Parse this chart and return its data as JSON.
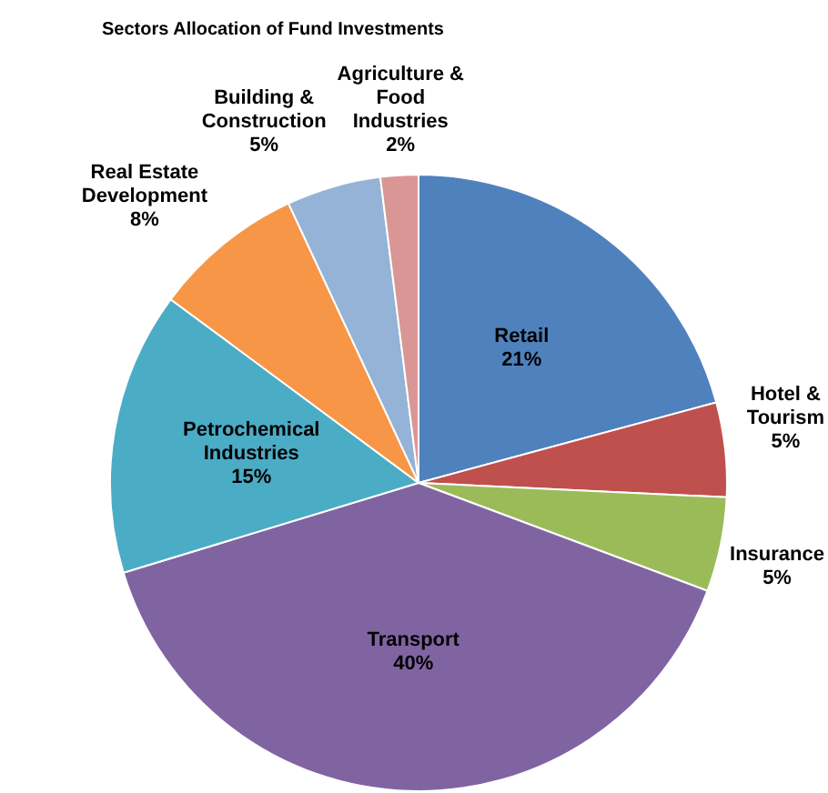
{
  "chart_data": {
    "type": "pie",
    "title": "Sectors Allocation of Fund Investments",
    "categories": [
      "Retail",
      "Hotel & Tourism",
      "Insurance",
      "Transport",
      "Petrochemical Industries",
      "Real Estate Development",
      "Building & Construction",
      "Agriculture & Food Industries"
    ],
    "values": [
      21,
      5,
      5,
      40,
      15,
      8,
      5,
      2
    ],
    "value_labels": [
      "21%",
      "5%",
      "5%",
      "40%",
      "15%",
      "8%",
      "5%",
      "2%"
    ],
    "colors": [
      "#4f81bd",
      "#c0504d",
      "#9bbb59",
      "#8064a2",
      "#4bacc6",
      "#f79646",
      "#95b3d7",
      "#d99694"
    ],
    "legend": false
  }
}
